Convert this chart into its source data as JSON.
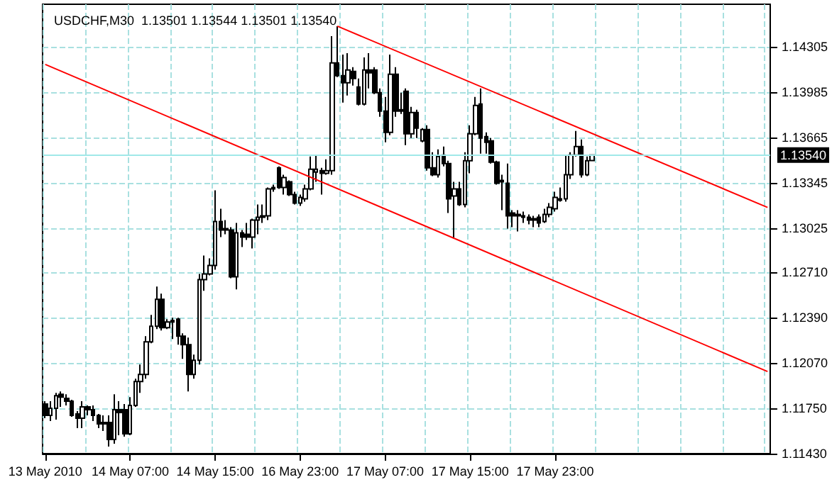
{
  "chart_data": {
    "type": "candlestick",
    "title": "USDCHF,M30  1.13501 1.13544 1.13501 1.13540",
    "categories": [
      "13 May 2010",
      null,
      null,
      null,
      null,
      null,
      null,
      null,
      null,
      null,
      null,
      null,
      null,
      null,
      null,
      null,
      "14 May 07:00",
      null,
      null,
      null,
      null,
      null,
      null,
      null,
      null,
      null,
      null,
      null,
      null,
      null,
      null,
      null,
      "14 May 15:00",
      null,
      null,
      null,
      null,
      null,
      null,
      null,
      null,
      null,
      null,
      null,
      null,
      null,
      null,
      null,
      "16 May 23:00",
      null,
      null,
      null,
      null,
      null,
      null,
      null,
      null,
      null,
      null,
      null,
      null,
      null,
      null,
      null,
      "17 May 07:00",
      null,
      null,
      null,
      null,
      null,
      null,
      null,
      null,
      null,
      null,
      null,
      null,
      null,
      null,
      null,
      "17 May 15:00",
      null,
      null,
      null,
      null,
      null,
      null,
      null,
      null,
      null,
      null,
      null,
      null,
      null,
      null,
      null,
      "17 May 23:00",
      null,
      null,
      null,
      null,
      null,
      null,
      null,
      null,
      null,
      null,
      null,
      null,
      null,
      null,
      null,
      null,
      null,
      null,
      null,
      null,
      null,
      null,
      null,
      null,
      null,
      null,
      null,
      null,
      null,
      null,
      null,
      null,
      null,
      null,
      null,
      null,
      null,
      null,
      null,
      null
    ],
    "series": [
      {
        "type": "candlestick",
        "color": "#000000",
        "ohlc": [
          [
            1.1178,
            1.118,
            1.1168,
            1.117
          ],
          [
            1.117,
            1.118,
            1.1166,
            1.1175
          ],
          [
            1.1175,
            1.1186,
            1.1167,
            1.1184
          ],
          [
            1.1185,
            1.1187,
            1.1176,
            1.1183
          ],
          [
            1.1182,
            1.1185,
            1.1177,
            1.118
          ],
          [
            1.118,
            1.1181,
            1.1169,
            1.117
          ],
          [
            1.1171,
            1.1173,
            1.1161,
            1.1168
          ],
          [
            1.1168,
            1.118,
            1.1161,
            1.1176
          ],
          [
            1.1176,
            1.1177,
            1.117,
            1.1174
          ],
          [
            1.1174,
            1.1177,
            1.1166,
            1.117
          ],
          [
            1.117,
            1.1171,
            1.1161,
            1.1164
          ],
          [
            1.1165,
            1.117,
            1.1159,
            1.1164
          ],
          [
            1.1165,
            1.117,
            1.1148,
            1.1153
          ],
          [
            1.1153,
            1.1185,
            1.115,
            1.1174
          ],
          [
            1.1174,
            1.118,
            1.1156,
            1.1172
          ],
          [
            1.1174,
            1.1178,
            1.1155,
            1.1157
          ],
          [
            1.1157,
            1.1183,
            1.1156,
            1.1177
          ],
          [
            1.1177,
            1.1196,
            1.1176,
            1.1194
          ],
          [
            1.1194,
            1.1206,
            1.1186,
            1.1199
          ],
          [
            1.1199,
            1.1226,
            1.1196,
            1.1222
          ],
          [
            1.1222,
            1.1241,
            1.1221,
            1.1233
          ],
          [
            1.1233,
            1.1261,
            1.1231,
            1.1252
          ],
          [
            1.1252,
            1.1256,
            1.123,
            1.1232
          ],
          [
            1.1232,
            1.1238,
            1.1231,
            1.1236
          ],
          [
            1.1237,
            1.1239,
            1.1224,
            1.1236
          ],
          [
            1.1238,
            1.1239,
            1.122,
            1.1226
          ],
          [
            1.1226,
            1.1228,
            1.121,
            1.122
          ],
          [
            1.122,
            1.1225,
            1.1187,
            1.1199
          ],
          [
            1.1199,
            1.1213,
            1.1196,
            1.1209
          ],
          [
            1.1209,
            1.127,
            1.1206,
            1.1266
          ],
          [
            1.1266,
            1.1283,
            1.1258,
            1.127
          ],
          [
            1.127,
            1.1281,
            1.1269,
            1.1276
          ],
          [
            1.1276,
            1.1329,
            1.1273,
            1.1307
          ],
          [
            1.1307,
            1.1316,
            1.1296,
            1.1301
          ],
          [
            1.1301,
            1.1308,
            1.1298,
            1.1302
          ],
          [
            1.1301,
            1.1303,
            1.1267,
            1.1268
          ],
          [
            1.1268,
            1.1306,
            1.1259,
            1.1299
          ],
          [
            1.1299,
            1.1301,
            1.1289,
            1.1296
          ],
          [
            1.1298,
            1.1306,
            1.1294,
            1.1296
          ],
          [
            1.1296,
            1.1309,
            1.1288,
            1.1308
          ],
          [
            1.1308,
            1.1319,
            1.1298,
            1.131
          ],
          [
            1.131,
            1.1319,
            1.1306,
            1.1311
          ],
          [
            1.1311,
            1.1331,
            1.1308,
            1.133
          ],
          [
            1.133,
            1.1333,
            1.1328,
            1.1331
          ],
          [
            1.1345,
            1.1346,
            1.133,
            1.1331
          ],
          [
            1.1331,
            1.134,
            1.1326,
            1.1338
          ],
          [
            1.1335,
            1.1336,
            1.1325,
            1.1326
          ],
          [
            1.1326,
            1.1328,
            1.1319,
            1.132
          ],
          [
            1.132,
            1.1326,
            1.1318,
            1.1324
          ],
          [
            1.1323,
            1.1333,
            1.1321,
            1.133
          ],
          [
            1.133,
            1.1353,
            1.1329,
            1.1344
          ],
          [
            1.1342,
            1.1354,
            1.1335,
            1.1344
          ],
          [
            1.1343,
            1.1345,
            1.1326,
            1.1341
          ],
          [
            1.1341,
            1.1351,
            1.134,
            1.1343
          ],
          [
            1.1343,
            1.1438,
            1.134,
            1.1419
          ],
          [
            1.1419,
            1.1445,
            1.1409,
            1.141
          ],
          [
            1.141,
            1.1425,
            1.1391,
            1.1405
          ],
          [
            1.1405,
            1.1426,
            1.1396,
            1.1414
          ],
          [
            1.1413,
            1.1416,
            1.1403,
            1.1408
          ],
          [
            1.1402,
            1.1408,
            1.1389,
            1.139
          ],
          [
            1.139,
            1.1423,
            1.1389,
            1.1414
          ],
          [
            1.1414,
            1.1426,
            1.1401,
            1.1412
          ],
          [
            1.1414,
            1.1416,
            1.1397,
            1.1398
          ],
          [
            1.1398,
            1.1401,
            1.1381,
            1.1385
          ],
          [
            1.1385,
            1.1395,
            1.1363,
            1.137
          ],
          [
            1.137,
            1.1425,
            1.1368,
            1.1411
          ],
          [
            1.1411,
            1.1416,
            1.1381,
            1.1385
          ],
          [
            1.1385,
            1.1398,
            1.1383,
            1.1386
          ],
          [
            1.1399,
            1.1401,
            1.1361,
            1.1369
          ],
          [
            1.1369,
            1.1388,
            1.1366,
            1.1384
          ],
          [
            1.1384,
            1.1386,
            1.1366,
            1.1373
          ],
          [
            1.1364,
            1.1373,
            1.1363,
            1.1372
          ],
          [
            1.1372,
            1.1375,
            1.1343,
            1.1345
          ],
          [
            1.1345,
            1.1356,
            1.1339,
            1.134
          ],
          [
            1.134,
            1.1358,
            1.1338,
            1.1353
          ],
          [
            1.1354,
            1.136,
            1.1346,
            1.1348
          ],
          [
            1.1348,
            1.135,
            1.1313,
            1.1323
          ],
          [
            1.1325,
            1.1335,
            1.1295,
            1.133
          ],
          [
            1.133,
            1.1335,
            1.1318,
            1.1319
          ],
          [
            1.1319,
            1.1356,
            1.1317,
            1.135
          ],
          [
            1.135,
            1.1375,
            1.1341,
            1.1369
          ],
          [
            1.1369,
            1.1395,
            1.1368,
            1.1389
          ],
          [
            1.139,
            1.1401,
            1.1355,
            1.1366
          ],
          [
            1.1367,
            1.137,
            1.1355,
            1.1363
          ],
          [
            1.1364,
            1.1366,
            1.1348,
            1.1349
          ],
          [
            1.1349,
            1.135,
            1.1333,
            1.1334
          ],
          [
            1.1335,
            1.134,
            1.1315,
            1.1336
          ],
          [
            1.1334,
            1.1348,
            1.1302,
            1.1311
          ],
          [
            1.1313,
            1.1315,
            1.1303,
            1.1311
          ],
          [
            1.1312,
            1.1315,
            1.13,
            1.1311
          ],
          [
            1.1311,
            1.1314,
            1.1306,
            1.131
          ],
          [
            1.131,
            1.1312,
            1.1305,
            1.1308
          ],
          [
            1.1309,
            1.1311,
            1.1303,
            1.1308
          ],
          [
            1.131,
            1.1312,
            1.1303,
            1.1306
          ],
          [
            1.1307,
            1.1316,
            1.1306,
            1.1312
          ],
          [
            1.1312,
            1.132,
            1.131,
            1.1317
          ],
          [
            1.1316,
            1.1328,
            1.1314,
            1.1324
          ],
          [
            1.1322,
            1.1331,
            1.1321,
            1.1323
          ],
          [
            1.1323,
            1.1354,
            1.1321,
            1.134
          ],
          [
            1.134,
            1.1356,
            1.1337,
            1.1354
          ],
          [
            1.1354,
            1.1371,
            1.1353,
            1.136
          ],
          [
            1.136,
            1.1365,
            1.1338,
            1.134
          ],
          [
            1.134,
            1.1353,
            1.1339,
            1.135
          ],
          [
            1.13501,
            1.13544,
            1.13501,
            1.1354
          ],
          null,
          null,
          null,
          null,
          null,
          null,
          null,
          null,
          null,
          null,
          null,
          null,
          null,
          null,
          null,
          null,
          null,
          null,
          null,
          null,
          null,
          null,
          null,
          null,
          null,
          null,
          null,
          null,
          null,
          null,
          null,
          null,
          null
        ]
      },
      {
        "type": "line",
        "color": "#ff0000",
        "values": [
          null,
          null,
          null,
          null,
          null,
          null,
          null,
          null,
          null,
          null,
          null,
          null,
          null,
          null,
          null,
          null,
          null,
          null,
          null,
          null,
          null,
          null,
          null,
          null,
          null,
          null,
          null,
          null,
          null,
          null,
          null,
          null,
          null,
          null,
          null,
          null,
          null,
          null,
          null,
          null,
          null,
          null,
          null,
          null,
          null,
          null,
          null,
          null,
          null,
          null,
          null,
          null,
          null,
          null,
          null,
          1.1445,
          null,
          null,
          null,
          null,
          null,
          null,
          null,
          null,
          null,
          null,
          null,
          null,
          null,
          null,
          null,
          null,
          null,
          null,
          null,
          null,
          null,
          null,
          null,
          null,
          null,
          null,
          null,
          null,
          null,
          null,
          null,
          null,
          null,
          null,
          null,
          null,
          null,
          null,
          null,
          null,
          null,
          null,
          null,
          null,
          null,
          null,
          null,
          null,
          null,
          null,
          null,
          null,
          null,
          null,
          null,
          null,
          null,
          null,
          null,
          null,
          null,
          null,
          null,
          null,
          null,
          null,
          null,
          null,
          null,
          null,
          null,
          null,
          null,
          null,
          null,
          null,
          null,
          null,
          null,
          null,
          1.1317
        ]
      },
      {
        "type": "line",
        "color": "#ff0000",
        "values": [
          1.1418,
          null,
          null,
          null,
          null,
          null,
          null,
          null,
          null,
          null,
          null,
          null,
          null,
          null,
          null,
          null,
          null,
          null,
          null,
          null,
          null,
          null,
          null,
          null,
          null,
          null,
          null,
          null,
          null,
          null,
          null,
          null,
          null,
          null,
          null,
          null,
          null,
          null,
          null,
          null,
          null,
          null,
          null,
          null,
          null,
          null,
          null,
          null,
          null,
          null,
          null,
          null,
          null,
          null,
          null,
          null,
          null,
          null,
          null,
          null,
          null,
          null,
          null,
          null,
          null,
          null,
          null,
          null,
          null,
          null,
          null,
          null,
          null,
          null,
          null,
          null,
          null,
          null,
          null,
          null,
          null,
          null,
          null,
          null,
          null,
          null,
          null,
          null,
          null,
          null,
          null,
          null,
          null,
          null,
          null,
          null,
          null,
          null,
          null,
          null,
          null,
          null,
          null,
          null,
          null,
          null,
          null,
          null,
          null,
          null,
          null,
          null,
          null,
          null,
          null,
          null,
          null,
          null,
          null,
          null,
          null,
          null,
          null,
          null,
          null,
          null,
          null,
          null,
          null,
          null,
          null,
          null,
          null,
          null,
          null,
          null,
          1.1201
        ]
      }
    ],
    "ylim": [
      1.1143,
      1.14605
    ],
    "yticks": [
      1.14305,
      1.13985,
      1.13665,
      1.13345,
      1.13025,
      {
        "value": 1.1271,
        "label": "1.12710"
      },
      {
        "value": 1.1239,
        "label": "1.12390"
      },
      {
        "value": 1.1207,
        "label": "1.12070"
      },
      {
        "value": 1.1175,
        "label": "1.11750"
      },
      {
        "value": 1.1143,
        "label": "1.11430"
      }
    ],
    "ref_lines": [
      {
        "axis": "y",
        "value": 1.1354,
        "label": "1.13540",
        "color": "#a0e8e8"
      }
    ],
    "grid": true
  }
}
